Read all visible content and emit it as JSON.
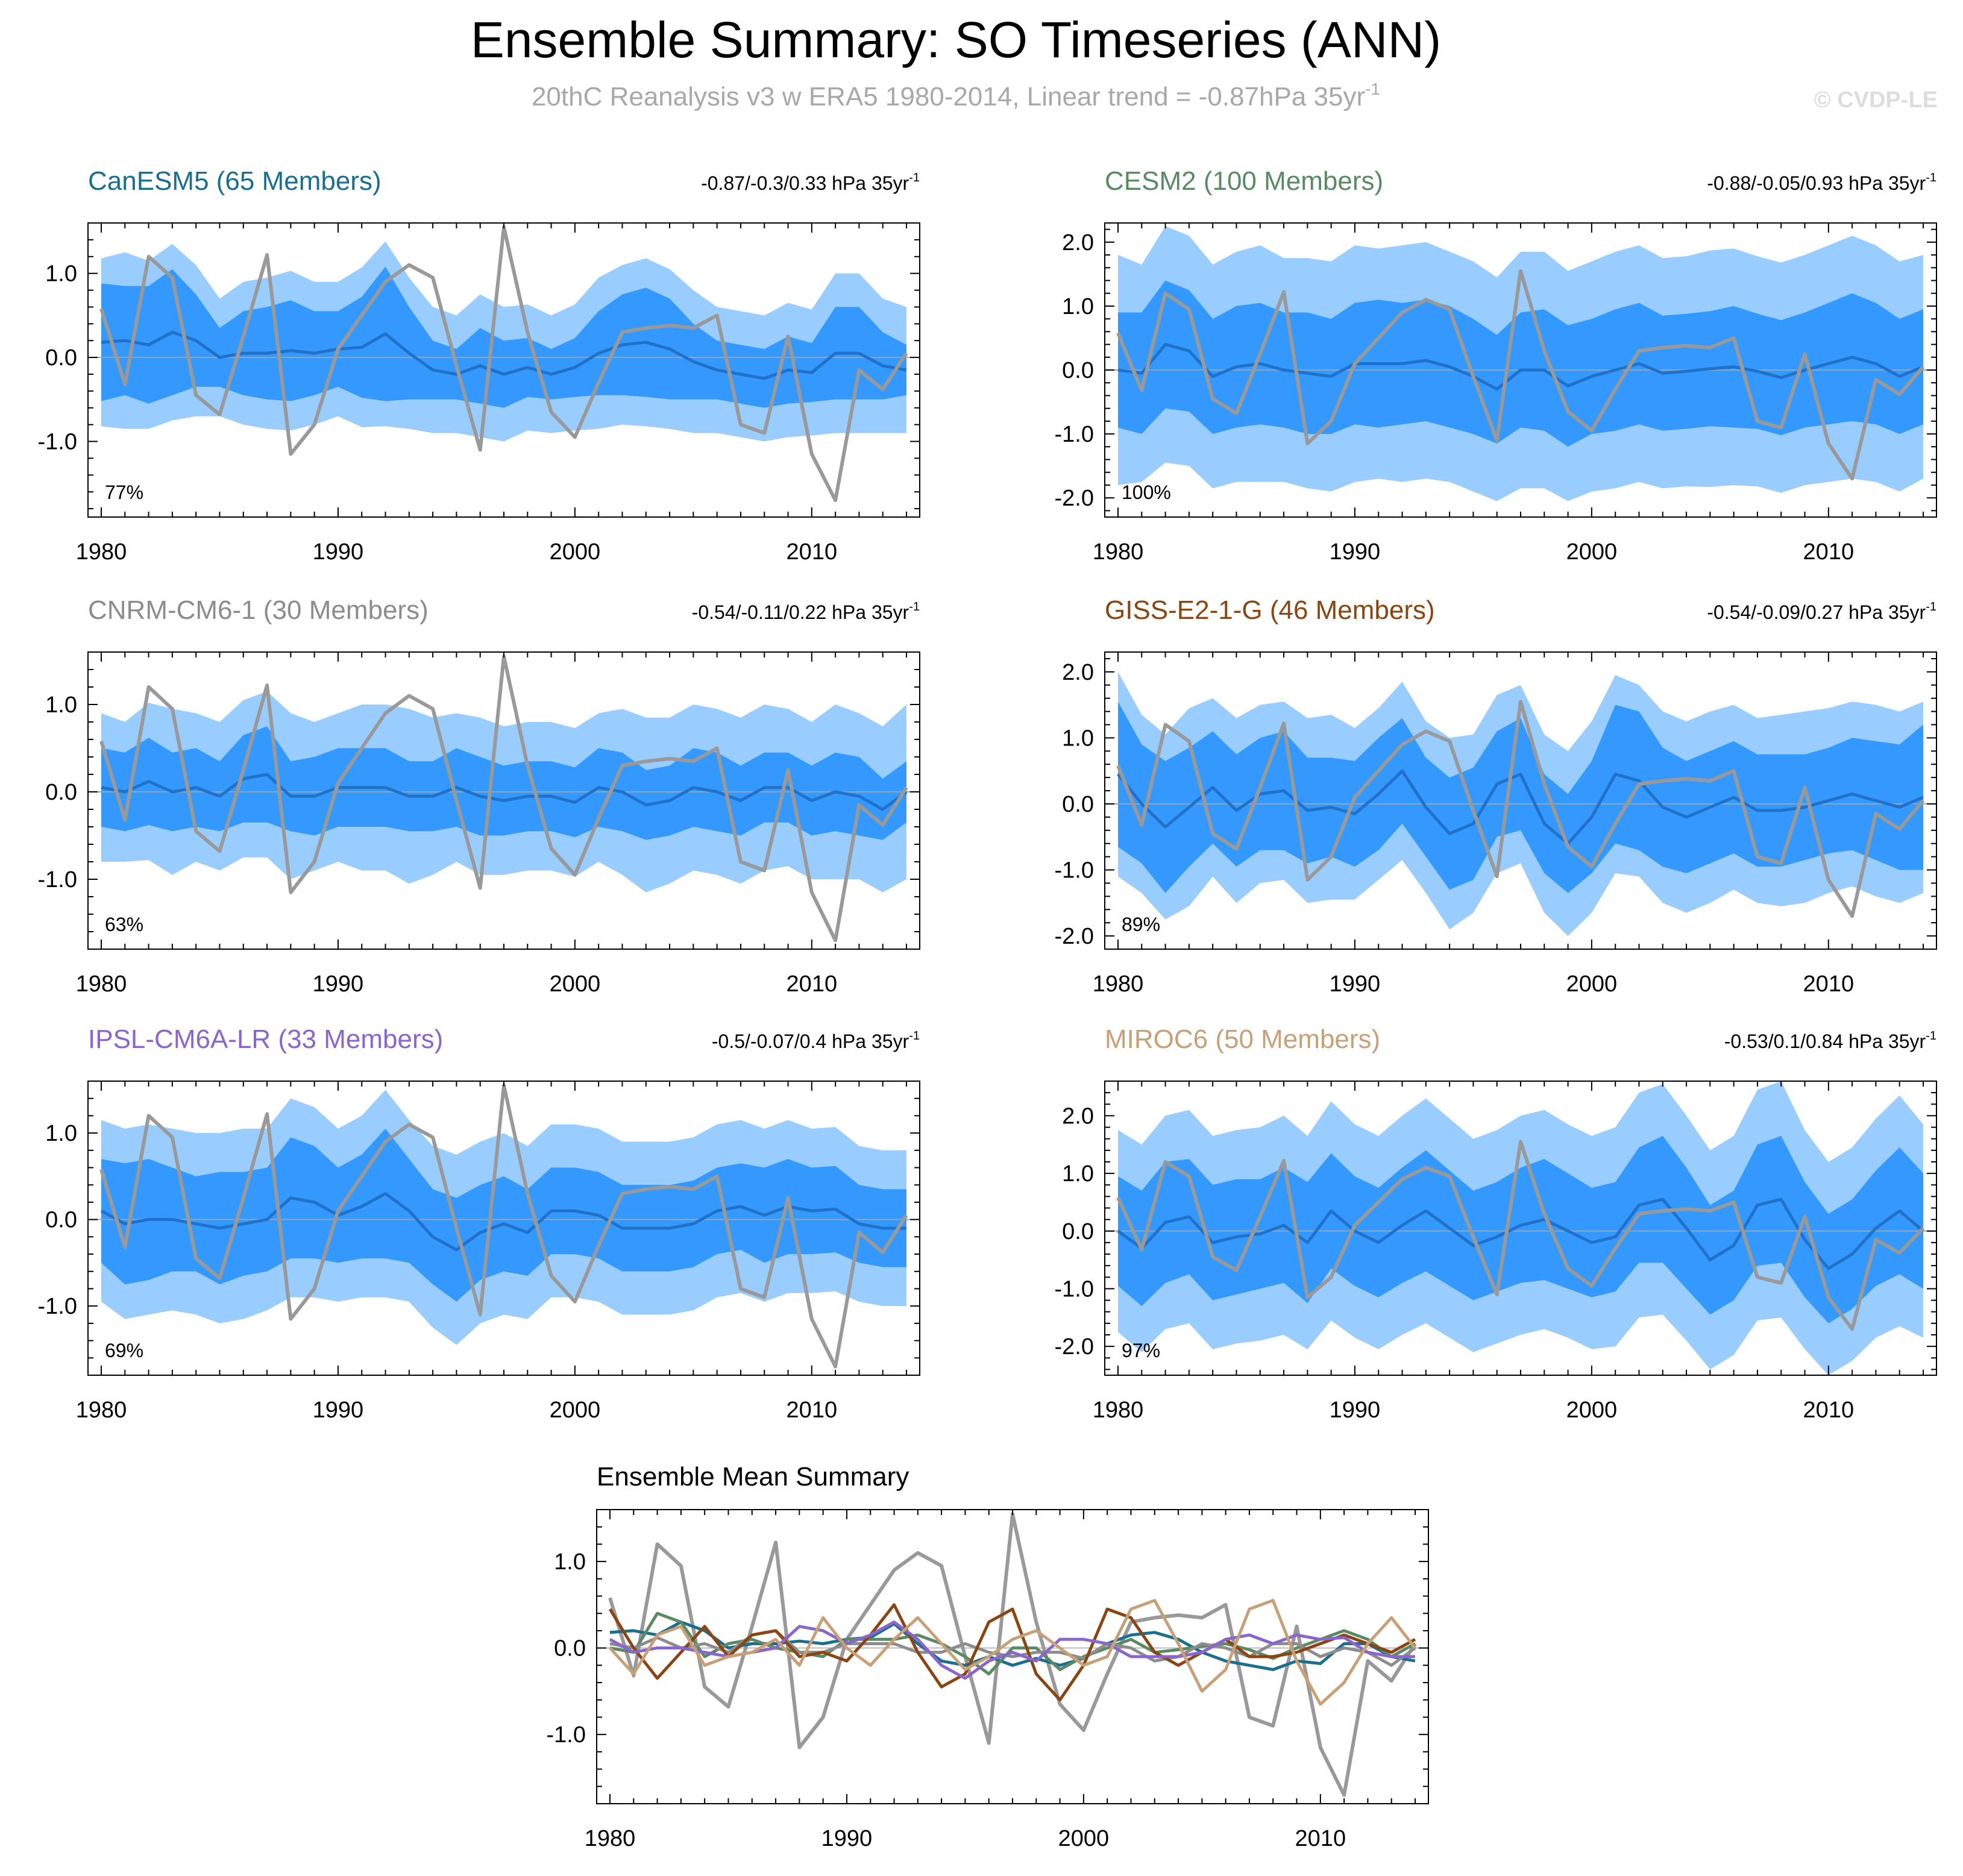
{
  "title": "Ensemble Summary: SO Timeseries (ANN)",
  "subtitle": "20thC Reanalysis v3 w ERA5 1980-2014, Linear trend = -0.87hPa 35yr",
  "subtitle_exp": "-1",
  "watermark": "© CVDP-LE",
  "colors": {
    "outer_band": "#99ccff",
    "inner_band": "#3399ff",
    "ens_mean": "#2171c9",
    "obs": "#999999"
  },
  "chart_data": {
    "type": "line",
    "years": [
      1980,
      1981,
      1982,
      1983,
      1984,
      1985,
      1986,
      1987,
      1988,
      1989,
      1990,
      1991,
      1992,
      1993,
      1994,
      1995,
      1996,
      1997,
      1998,
      1999,
      2000,
      2001,
      2002,
      2003,
      2004,
      2005,
      2006,
      2007,
      2008,
      2009,
      2010,
      2011,
      2012,
      2013,
      2014
    ],
    "xticks": [
      1980,
      1990,
      2000,
      2010
    ],
    "tick_labels": {
      "1980": "1980",
      "1990": "1990",
      "2000": "2000",
      "2010": "2010"
    },
    "observed": [
      0.58,
      -0.32,
      1.2,
      0.95,
      -0.45,
      -0.68,
      0.25,
      1.22,
      -1.15,
      -0.8,
      0.1,
      0.5,
      0.9,
      1.1,
      0.95,
      -0.1,
      -1.1,
      1.55,
      0.3,
      -0.65,
      -0.95,
      -0.3,
      0.3,
      0.35,
      0.38,
      0.35,
      0.5,
      -0.8,
      -0.9,
      0.25,
      -1.15,
      -1.7,
      -0.15,
      -0.38,
      0.05
    ],
    "panels": [
      {
        "model": "CanESM5",
        "members_label": "CanESM5 (65 Members)",
        "color": "#1a6e8e",
        "trend_label": "-0.87/-0.3/0.33 hPa 35yr",
        "trend_exp": "-1",
        "pct": "77%",
        "ylim": [
          -1.9,
          1.6
        ],
        "yticks": [
          -1.0,
          0.0,
          1.0
        ],
        "ytick_labels": [
          "-1.0",
          "0.0",
          "1.0"
        ],
        "mean": [
          0.18,
          0.2,
          0.15,
          0.3,
          0.2,
          0.0,
          0.05,
          0.05,
          0.08,
          0.05,
          0.1,
          0.12,
          0.28,
          0.05,
          -0.15,
          -0.2,
          -0.1,
          -0.2,
          -0.12,
          -0.2,
          -0.12,
          0.05,
          0.15,
          0.18,
          0.1,
          -0.05,
          -0.15,
          -0.2,
          -0.25,
          -0.15,
          -0.18,
          0.05,
          0.05,
          -0.1,
          -0.15
        ],
        "inner": [
          0.7,
          0.65,
          0.7,
          0.75,
          0.55,
          0.35,
          0.5,
          0.55,
          0.6,
          0.5,
          0.45,
          0.6,
          0.8,
          0.55,
          0.35,
          0.3,
          0.45,
          0.4,
          0.35,
          0.3,
          0.35,
          0.5,
          0.6,
          0.65,
          0.6,
          0.45,
          0.35,
          0.35,
          0.35,
          0.4,
          0.35,
          0.55,
          0.55,
          0.4,
          0.3
        ],
        "outer": [
          1.0,
          1.05,
          1.0,
          1.05,
          0.9,
          0.7,
          0.85,
          0.9,
          0.95,
          0.85,
          0.8,
          0.95,
          1.1,
          0.9,
          0.75,
          0.7,
          0.85,
          0.8,
          0.75,
          0.7,
          0.75,
          0.9,
          0.95,
          1.0,
          0.95,
          0.85,
          0.75,
          0.75,
          0.75,
          0.8,
          0.75,
          0.95,
          0.95,
          0.8,
          0.75
        ]
      },
      {
        "model": "CESM2",
        "members_label": "CESM2 (100 Members)",
        "color": "#5a8a64",
        "trend_label": "-0.88/-0.05/0.93 hPa 35yr",
        "trend_exp": "-1",
        "pct": "100%",
        "ylim": [
          -2.3,
          2.3
        ],
        "yticks": [
          -2.0,
          -1.0,
          0.0,
          1.0,
          2.0
        ],
        "ytick_labels": [
          "-2.0",
          "-1.0",
          "0.0",
          "1.0",
          "2.0"
        ],
        "mean": [
          0.0,
          -0.05,
          0.4,
          0.3,
          -0.1,
          0.05,
          0.1,
          0.0,
          -0.05,
          -0.1,
          0.1,
          0.1,
          0.1,
          0.15,
          0.05,
          -0.1,
          -0.3,
          0.0,
          0.0,
          -0.25,
          -0.1,
          0.0,
          0.1,
          -0.05,
          -0.02,
          0.02,
          0.05,
          -0.02,
          -0.12,
          0.0,
          0.1,
          0.2,
          0.1,
          -0.1,
          0.05
        ],
        "inner": [
          0.9,
          0.95,
          1.0,
          0.95,
          0.9,
          0.95,
          0.95,
          0.9,
          0.95,
          0.9,
          0.95,
          1.0,
          0.95,
          0.95,
          0.95,
          0.9,
          0.85,
          0.9,
          0.95,
          0.95,
          0.9,
          0.95,
          0.95,
          0.9,
          0.9,
          0.9,
          0.95,
          0.9,
          0.9,
          0.9,
          0.95,
          1.0,
          0.95,
          0.9,
          0.9
        ],
        "outer": [
          1.8,
          1.7,
          1.85,
          1.8,
          1.75,
          1.8,
          1.85,
          1.75,
          1.8,
          1.8,
          1.85,
          1.8,
          1.85,
          1.85,
          1.8,
          1.8,
          1.75,
          1.85,
          1.85,
          1.8,
          1.8,
          1.85,
          1.85,
          1.8,
          1.8,
          1.85,
          1.85,
          1.8,
          1.8,
          1.8,
          1.85,
          1.9,
          1.85,
          1.8,
          1.75
        ]
      },
      {
        "model": "CNRM-CM6-1",
        "members_label": "CNRM-CM6-1 (30 Members)",
        "color": "#8c8c8c",
        "trend_label": "-0.54/-0.11/0.22 hPa 35yr",
        "trend_exp": "-1",
        "pct": "63%",
        "ylim": [
          -1.8,
          1.6
        ],
        "yticks": [
          -1.0,
          0.0,
          1.0
        ],
        "ytick_labels": [
          "-1.0",
          "0.0",
          "1.0"
        ],
        "mean": [
          0.05,
          0.0,
          0.12,
          0.0,
          0.05,
          -0.05,
          0.15,
          0.2,
          -0.05,
          -0.05,
          0.05,
          0.05,
          0.05,
          -0.05,
          -0.05,
          0.05,
          -0.05,
          -0.1,
          -0.05,
          -0.05,
          -0.12,
          0.05,
          0.0,
          -0.15,
          -0.1,
          0.05,
          0.0,
          -0.1,
          0.05,
          0.05,
          -0.1,
          0.0,
          -0.05,
          -0.2,
          0.0
        ],
        "inner": [
          0.45,
          0.45,
          0.5,
          0.45,
          0.45,
          0.4,
          0.5,
          0.55,
          0.4,
          0.45,
          0.45,
          0.45,
          0.45,
          0.4,
          0.4,
          0.45,
          0.45,
          0.4,
          0.4,
          0.4,
          0.4,
          0.45,
          0.45,
          0.4,
          0.4,
          0.45,
          0.45,
          0.4,
          0.4,
          0.4,
          0.4,
          0.45,
          0.45,
          0.35,
          0.35
        ],
        "outer": [
          0.85,
          0.8,
          0.9,
          0.95,
          0.85,
          0.85,
          0.9,
          0.95,
          0.95,
          0.85,
          0.85,
          0.95,
          0.95,
          1.0,
          0.9,
          0.85,
          0.9,
          0.85,
          0.85,
          0.85,
          0.85,
          0.85,
          0.95,
          1.0,
          0.95,
          0.95,
          0.95,
          0.95,
          0.95,
          0.9,
          0.9,
          1.0,
          0.95,
          0.95,
          1.0
        ]
      },
      {
        "model": "GISS-E2-1-G",
        "members_label": "GISS-E2-1-G (46 Members)",
        "color": "#8b4513",
        "trend_label": "-0.54/-0.09/0.27 hPa 35yr",
        "trend_exp": "-1",
        "pct": "89%",
        "ylim": [
          -2.2,
          2.3
        ],
        "yticks": [
          -2.0,
          -1.0,
          0.0,
          1.0,
          2.0
        ],
        "ytick_labels": [
          "-2.0",
          "-1.0",
          "0.0",
          "1.0",
          "2.0"
        ],
        "mean": [
          0.45,
          0.0,
          -0.35,
          -0.05,
          0.25,
          -0.1,
          0.15,
          0.2,
          -0.1,
          -0.05,
          -0.15,
          0.15,
          0.5,
          -0.05,
          -0.45,
          -0.3,
          0.3,
          0.45,
          -0.3,
          -0.6,
          -0.2,
          0.45,
          0.35,
          -0.05,
          -0.2,
          -0.05,
          0.1,
          -0.1,
          -0.1,
          -0.05,
          0.05,
          0.15,
          0.05,
          -0.05,
          0.1
        ],
        "inner": [
          1.1,
          0.9,
          1.0,
          0.9,
          0.85,
          0.85,
          0.85,
          0.9,
          0.8,
          0.75,
          0.8,
          0.85,
          0.8,
          0.75,
          0.85,
          0.85,
          0.8,
          0.85,
          0.75,
          0.75,
          0.85,
          1.05,
          1.05,
          0.9,
          0.85,
          0.85,
          0.85,
          0.85,
          0.85,
          0.8,
          0.8,
          0.85,
          0.9,
          0.95,
          1.1
        ],
        "outer": [
          1.55,
          1.35,
          1.4,
          1.5,
          1.35,
          1.4,
          1.35,
          1.35,
          1.4,
          1.4,
          1.3,
          1.3,
          1.35,
          1.3,
          1.45,
          1.35,
          1.35,
          1.35,
          1.35,
          1.4,
          1.45,
          1.5,
          1.45,
          1.45,
          1.45,
          1.45,
          1.4,
          1.4,
          1.45,
          1.45,
          1.4,
          1.4,
          1.45,
          1.45,
          1.45
        ]
      },
      {
        "model": "IPSL-CM6A-LR",
        "members_label": "IPSL-CM6A-LR (33 Members)",
        "color": "#8a66cc",
        "trend_label": "-0.5/-0.07/0.4 hPa 35yr",
        "trend_exp": "-1",
        "pct": "69%",
        "ylim": [
          -1.8,
          1.6
        ],
        "yticks": [
          -1.0,
          0.0,
          1.0
        ],
        "ytick_labels": [
          "-1.0",
          "0.0",
          "1.0"
        ],
        "mean": [
          0.1,
          -0.05,
          0.0,
          0.0,
          -0.05,
          -0.1,
          -0.05,
          0.0,
          0.25,
          0.2,
          0.05,
          0.15,
          0.3,
          0.1,
          -0.2,
          -0.35,
          -0.15,
          -0.05,
          -0.15,
          0.1,
          0.1,
          0.05,
          -0.1,
          -0.1,
          -0.1,
          -0.05,
          0.1,
          0.15,
          0.05,
          0.15,
          0.1,
          0.12,
          -0.05,
          -0.1,
          -0.1
        ],
        "inner": [
          0.6,
          0.7,
          0.7,
          0.6,
          0.55,
          0.65,
          0.6,
          0.6,
          0.7,
          0.65,
          0.55,
          0.6,
          0.75,
          0.6,
          0.55,
          0.6,
          0.55,
          0.55,
          0.5,
          0.5,
          0.5,
          0.5,
          0.5,
          0.5,
          0.5,
          0.5,
          0.5,
          0.5,
          0.55,
          0.55,
          0.5,
          0.5,
          0.45,
          0.45,
          0.45
        ],
        "outer": [
          1.05,
          1.1,
          1.1,
          1.05,
          1.05,
          1.1,
          1.1,
          1.05,
          1.15,
          1.1,
          1.0,
          1.05,
          1.2,
          1.05,
          1.05,
          1.1,
          1.05,
          1.05,
          1.0,
          1.0,
          1.0,
          1.0,
          1.0,
          1.0,
          1.0,
          1.0,
          1.0,
          1.0,
          1.0,
          1.0,
          0.95,
          0.95,
          0.9,
          0.9,
          0.9
        ]
      },
      {
        "model": "MIROC6",
        "members_label": "MIROC6 (50 Members)",
        "color": "#c8a078",
        "trend_label": "-0.53/0.1/0.84 hPa 35yr",
        "trend_exp": "-1",
        "pct": "97%",
        "ylim": [
          -2.5,
          2.6
        ],
        "yticks": [
          -2.0,
          -1.0,
          0.0,
          1.0,
          2.0
        ],
        "ytick_labels": [
          "-2.0",
          "-1.0",
          "0.0",
          "1.0",
          "2.0"
        ],
        "mean": [
          0.0,
          -0.3,
          0.15,
          0.25,
          -0.2,
          -0.1,
          -0.05,
          0.1,
          -0.2,
          0.35,
          0.0,
          -0.2,
          0.1,
          0.35,
          0.05,
          -0.25,
          -0.1,
          0.1,
          0.2,
          0.0,
          -0.2,
          -0.1,
          0.45,
          0.55,
          0.05,
          -0.5,
          -0.25,
          0.45,
          0.55,
          -0.15,
          -0.65,
          -0.4,
          0.05,
          0.35,
          0.0
        ],
        "inner": [
          0.95,
          1.0,
          1.05,
          1.0,
          1.0,
          1.0,
          0.95,
          1.0,
          1.05,
          1.0,
          0.95,
          0.95,
          1.0,
          1.05,
          1.0,
          0.95,
          0.95,
          1.0,
          1.05,
          1.0,
          0.95,
          0.95,
          1.0,
          1.1,
          1.05,
          0.95,
          0.95,
          1.05,
          1.1,
          1.0,
          0.95,
          0.95,
          1.0,
          1.1,
          1.0
        ],
        "outer": [
          1.75,
          1.8,
          1.85,
          1.85,
          1.85,
          1.85,
          1.85,
          1.9,
          1.85,
          1.9,
          1.85,
          1.85,
          1.9,
          1.95,
          1.9,
          1.85,
          1.85,
          1.9,
          1.9,
          1.85,
          1.85,
          1.9,
          1.95,
          2.0,
          1.95,
          1.9,
          1.9,
          2.0,
          2.05,
          1.9,
          1.85,
          1.85,
          1.9,
          2.0,
          1.85
        ]
      }
    ],
    "summary": {
      "title": "Ensemble Mean Summary",
      "ylim": [
        -1.8,
        1.6
      ],
      "yticks": [
        -1.0,
        0.0,
        1.0
      ],
      "ytick_labels": [
        "-1.0",
        "0.0",
        "1.0"
      ]
    }
  }
}
